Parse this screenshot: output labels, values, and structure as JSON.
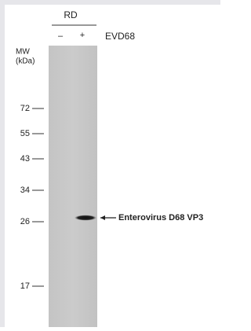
{
  "header": {
    "cell_line": "RD",
    "lanes": [
      "–",
      "+"
    ],
    "condition": "EVD68"
  },
  "mw_label": {
    "line1": "MW",
    "line2": "(kDa)"
  },
  "markers": [
    "72",
    "55",
    "43",
    "34",
    "26",
    "17"
  ],
  "band_label": "Enterovirus D68 VP3"
}
